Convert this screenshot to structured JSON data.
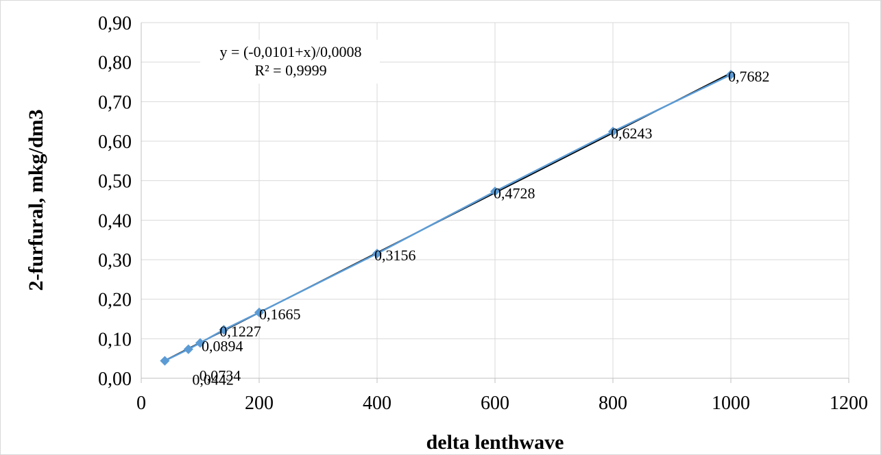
{
  "chart_data": {
    "type": "scatter",
    "title": "",
    "xlabel": "delta lenthwave",
    "ylabel": "2-furfural, mkg/dm3",
    "xlim": [
      0,
      1200
    ],
    "ylim": [
      0,
      0.9
    ],
    "x_ticks": [
      "0",
      "200",
      "400",
      "600",
      "800",
      "1000",
      "1200"
    ],
    "y_ticks": [
      "0,00",
      "0,10",
      "0,20",
      "0,30",
      "0,40",
      "0,50",
      "0,60",
      "0,70",
      "0,80",
      "0,90"
    ],
    "grid": true,
    "series": [
      {
        "x": [
          40,
          80,
          100,
          140,
          200,
          400,
          600,
          800,
          1000
        ],
        "y": [
          0.0442,
          0.0734,
          0.0894,
          0.1227,
          0.1665,
          0.3156,
          0.4728,
          0.6243,
          0.7682
        ],
        "labels": [
          "0,0442",
          "0,0734",
          "0,0894",
          "0,1227",
          "0,1665",
          "0,3156",
          "0,4728",
          "0,6243",
          "0,7682"
        ],
        "color": "#5b9bd5"
      }
    ],
    "trendline": {
      "equation": "y = (-0,0101+x)/0,0008",
      "r_squared": "R² = 0,9999",
      "color": "#000000"
    }
  }
}
